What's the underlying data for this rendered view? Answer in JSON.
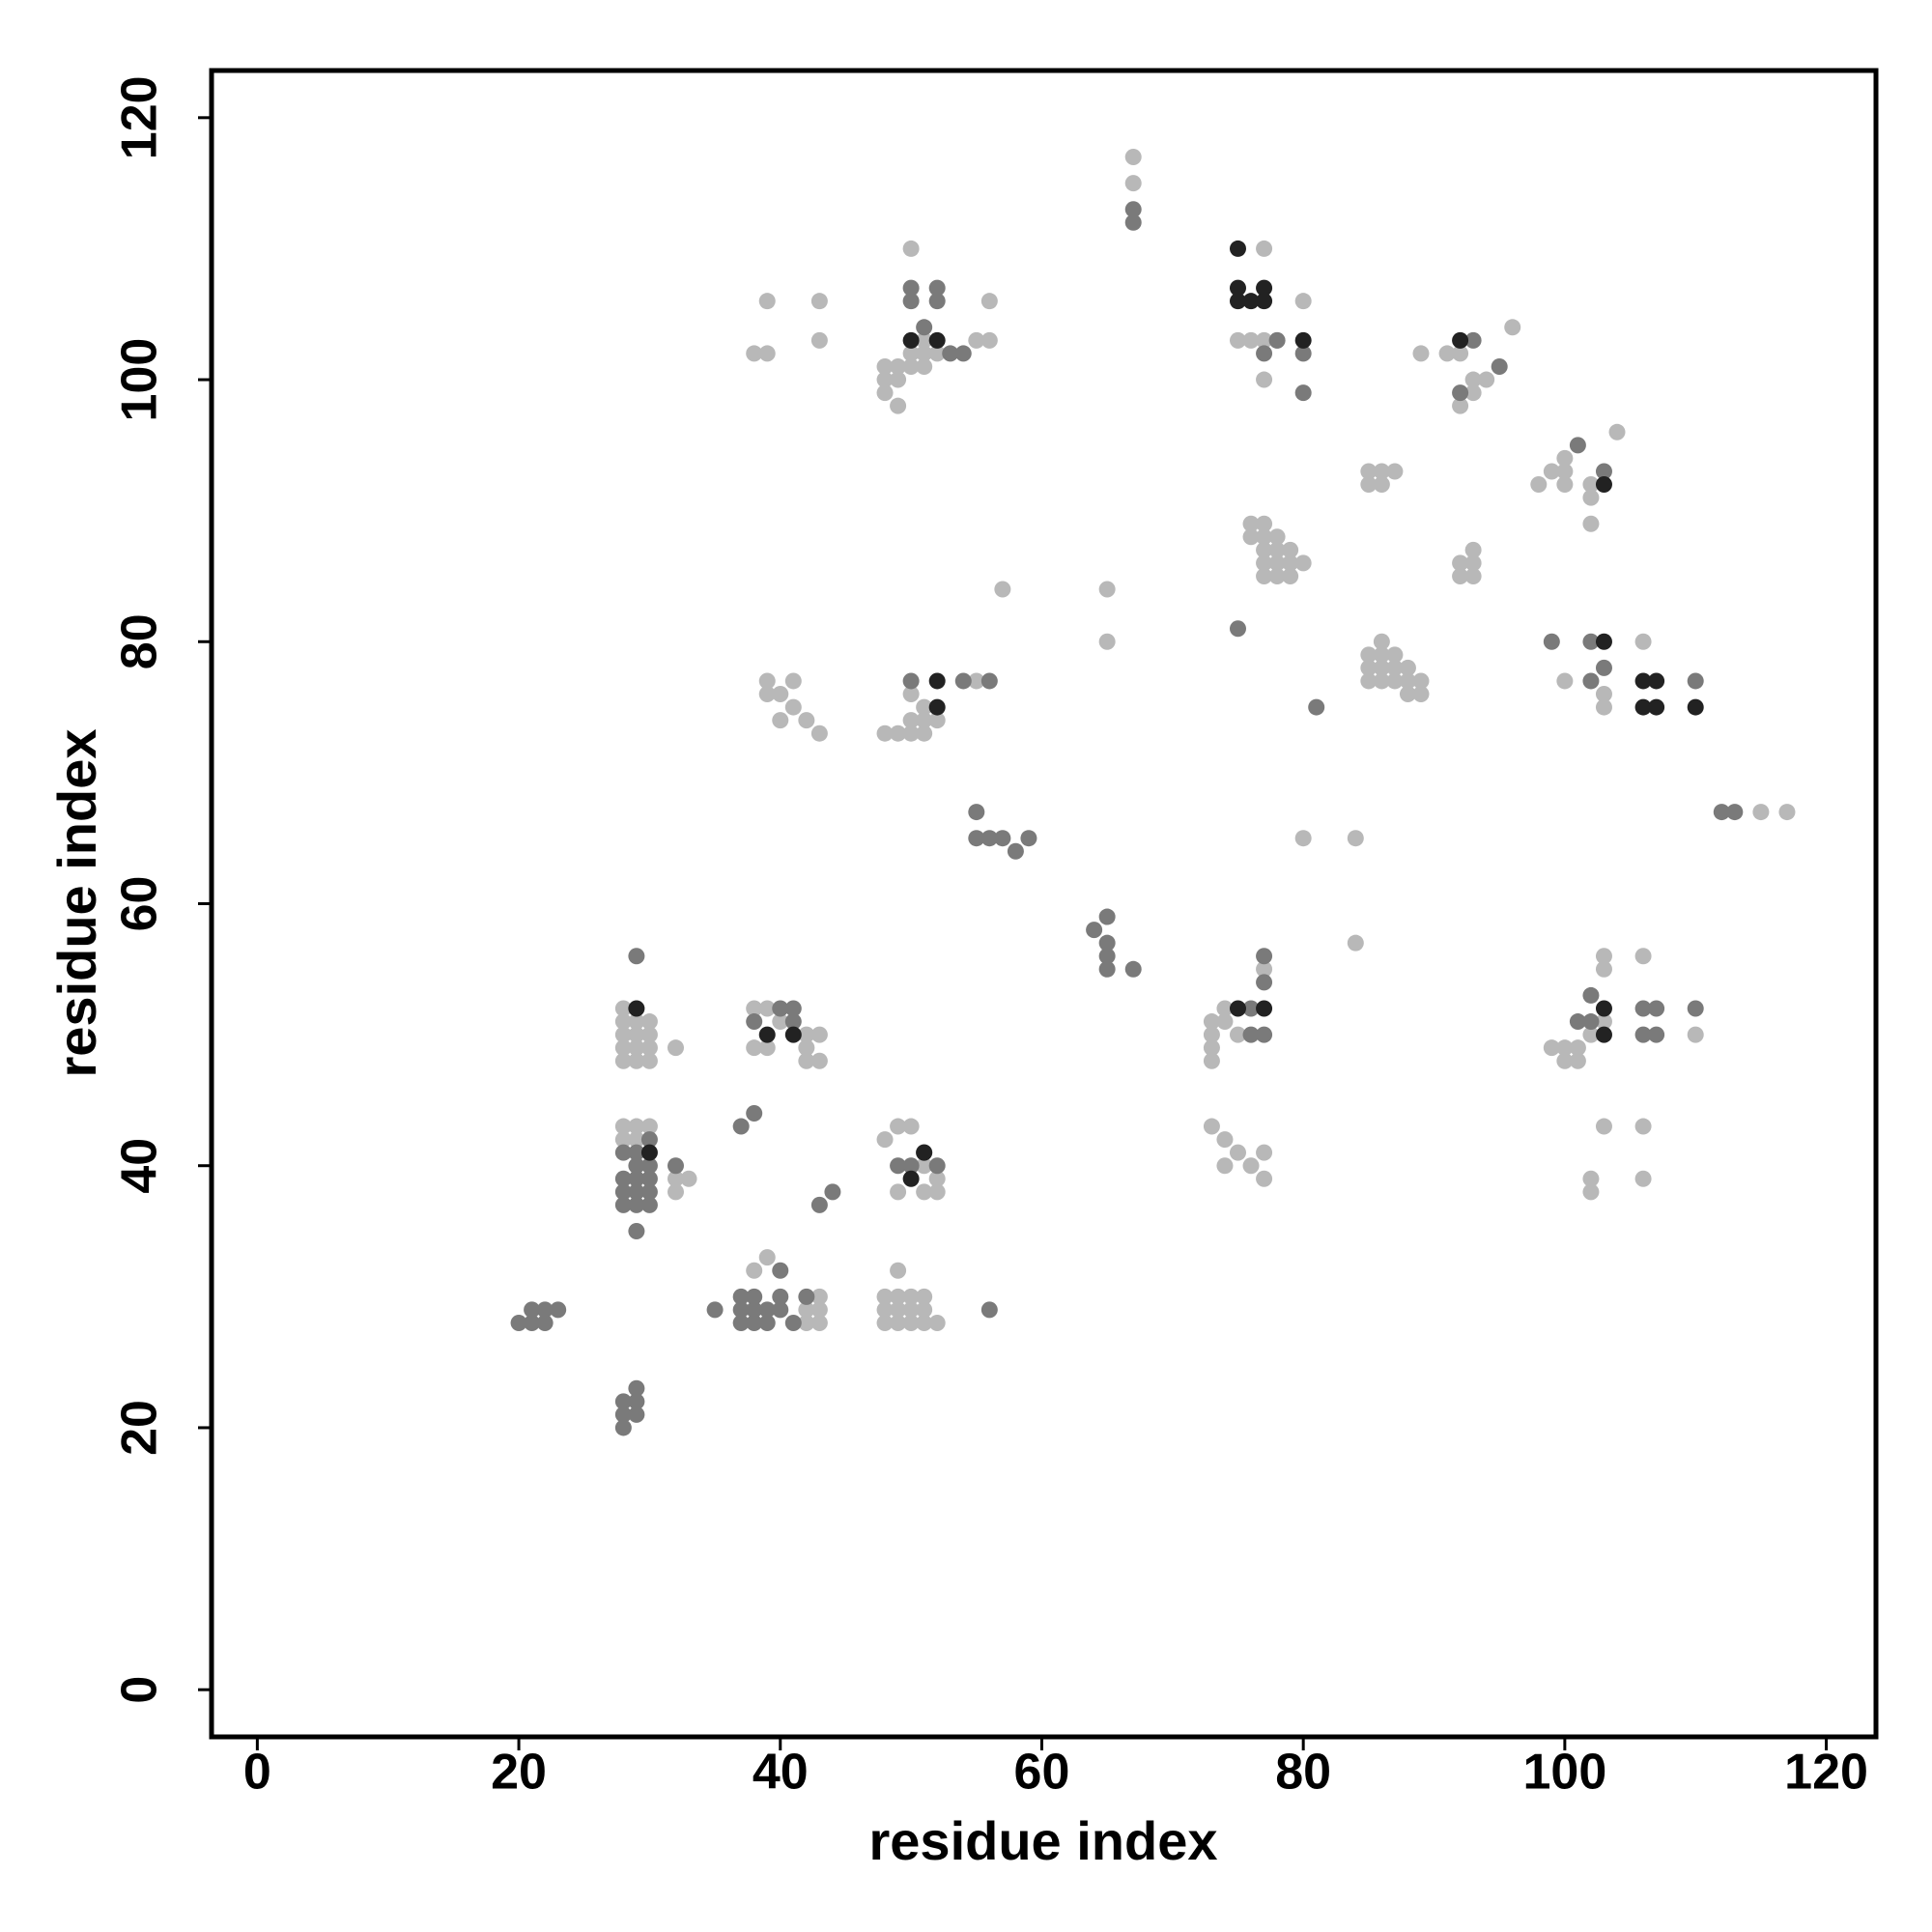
{
  "chart_data": {
    "type": "scatter",
    "xlabel": "residue index",
    "ylabel": "residue index",
    "xlim": [
      -3.5,
      123.8
    ],
    "ylim": [
      -3.6,
      123.6
    ],
    "xticks": [
      0,
      20,
      40,
      60,
      80,
      100,
      120
    ],
    "yticks": [
      0,
      20,
      40,
      60,
      80,
      100,
      120
    ],
    "series": [
      {
        "color": "#b8b8b8",
        "x": [
          28,
          28,
          28,
          28,
          28,
          29,
          29,
          29,
          29,
          30,
          30,
          30,
          30,
          32,
          28,
          28,
          29,
          30,
          29,
          32,
          33,
          32,
          38,
          39,
          38,
          39,
          40,
          42,
          42,
          43,
          42,
          43,
          38,
          39,
          42,
          43,
          42,
          43,
          43,
          48,
          48,
          49,
          49,
          50,
          50,
          51,
          51,
          52,
          48,
          49,
          50,
          51,
          49,
          48,
          49,
          50,
          49,
          51,
          52,
          52,
          51,
          38,
          39,
          39,
          43,
          43,
          48,
          48,
          48,
          49,
          49,
          49,
          50,
          50,
          51,
          51,
          51,
          52,
          50,
          55,
          56,
          56,
          39,
          39,
          40,
          41,
          41,
          40,
          42,
          43,
          48,
          49,
          50,
          51,
          50,
          51,
          52,
          50,
          51,
          55,
          57,
          67,
          67,
          65,
          65,
          75,
          76,
          77,
          78,
          77,
          80,
          77,
          76,
          77,
          76,
          77,
          78,
          77,
          78,
          79,
          77,
          78,
          79,
          80,
          77,
          78,
          79,
          85,
          86,
          87,
          85,
          86,
          85,
          86,
          87,
          85,
          86,
          87,
          88,
          85,
          86,
          87,
          88,
          89,
          88,
          89,
          86,
          89,
          91,
          92,
          93,
          94,
          92,
          93,
          96,
          92,
          93,
          93,
          92,
          93,
          98,
          99,
          100,
          100,
          100,
          102,
          102,
          102,
          104,
          100,
          103,
          103,
          106,
          80,
          84,
          84,
          115,
          117,
          73,
          74,
          73,
          73,
          73,
          74,
          75,
          77,
          73,
          74,
          74,
          75,
          76,
          77,
          77,
          99,
          100,
          101,
          100,
          101,
          102,
          103,
          103,
          103,
          103,
          102,
          102,
          106,
          106,
          106,
          110
        ],
        "values": [
          52,
          51,
          50,
          49,
          48,
          51,
          50,
          49,
          48,
          51,
          50,
          49,
          48,
          49,
          43,
          42,
          43,
          43,
          42,
          39,
          39,
          38,
          52,
          52,
          49,
          49,
          51,
          50,
          49,
          48,
          48,
          50,
          32,
          33,
          28,
          28,
          29,
          29,
          30,
          29,
          28,
          29,
          28,
          29,
          28,
          29,
          28,
          28,
          30,
          30,
          30,
          30,
          32,
          42,
          43,
          43,
          38,
          38,
          38,
          39,
          40,
          102,
          102,
          106,
          106,
          103,
          101,
          100,
          99,
          101,
          100,
          98,
          102,
          101,
          102,
          101,
          103,
          102,
          110,
          103,
          103,
          106,
          77,
          76,
          76,
          77,
          75,
          74,
          74,
          73,
          73,
          73,
          73,
          73,
          74,
          74,
          74,
          76,
          75,
          77,
          84,
          117,
          115,
          84,
          80,
          103,
          103,
          103,
          103,
          100,
          106,
          110,
          89,
          89,
          88,
          88,
          88,
          87,
          87,
          87,
          86,
          86,
          86,
          86,
          85,
          85,
          85,
          93,
          93,
          93,
          92,
          92,
          79,
          79,
          79,
          78,
          78,
          78,
          78,
          77,
          77,
          77,
          77,
          77,
          76,
          76,
          80,
          102,
          102,
          102,
          100,
          100,
          98,
          99,
          104,
          86,
          86,
          87,
          85,
          85,
          92,
          93,
          93,
          94,
          92,
          92,
          91,
          89,
          96,
          77,
          76,
          75,
          80,
          65,
          65,
          57,
          67,
          67,
          51,
          52,
          50,
          49,
          48,
          51,
          50,
          55,
          43,
          42,
          40,
          41,
          40,
          39,
          41,
          49,
          48,
          48,
          49,
          49,
          50,
          51,
          56,
          55,
          43,
          39,
          38,
          56,
          43,
          39,
          50
        ]
      },
      {
        "color": "#7a7a7a",
        "x": [
          20,
          21,
          22,
          21,
          22,
          23,
          28,
          28,
          28,
          29,
          29,
          29,
          29,
          28,
          29,
          30,
          28,
          29,
          30,
          28,
          29,
          30,
          28,
          29,
          30,
          29,
          30,
          29,
          32,
          37,
          38,
          35,
          37,
          37,
          38,
          38,
          39,
          39,
          40,
          41,
          40,
          37,
          38,
          40,
          42,
          44,
          43,
          56,
          38,
          41,
          41,
          40,
          49,
          50,
          51,
          52,
          50,
          50,
          52,
          52,
          51,
          53,
          54,
          50,
          54,
          56,
          55,
          55,
          56,
          57,
          58,
          59,
          67,
          67,
          64,
          65,
          65,
          65,
          65,
          67,
          75,
          77,
          78,
          80,
          80,
          81,
          77,
          77,
          77,
          76,
          76,
          92,
          93,
          95,
          99,
          101,
          102,
          102,
          103,
          103,
          102,
          101,
          102,
          106,
          107,
          106,
          107,
          110,
          110,
          112,
          113
        ],
        "values": [
          28,
          28,
          28,
          29,
          29,
          29,
          22,
          21,
          20,
          23,
          22,
          21,
          56,
          41,
          41,
          42,
          39,
          39,
          39,
          38,
          38,
          38,
          37,
          37,
          37,
          40,
          40,
          35,
          40,
          43,
          44,
          29,
          29,
          28,
          29,
          28,
          29,
          28,
          29,
          28,
          30,
          30,
          30,
          32,
          30,
          38,
          37,
          29,
          51,
          51,
          52,
          52,
          40,
          40,
          41,
          40,
          107,
          106,
          107,
          106,
          104,
          102,
          102,
          77,
          77,
          77,
          67,
          65,
          65,
          65,
          64,
          65,
          113,
          112,
          58,
          59,
          57,
          56,
          55,
          55,
          81,
          102,
          103,
          102,
          99,
          75,
          54,
          56,
          50,
          50,
          52,
          99,
          103,
          101,
          80,
          95,
          80,
          77,
          78,
          93,
          53,
          51,
          51,
          50,
          50,
          52,
          52,
          52,
          77,
          67,
          67
        ]
      },
      {
        "color": "#222222",
        "x": [
          29,
          30,
          39,
          41,
          51,
          50,
          50,
          52,
          52,
          52,
          75,
          75,
          75,
          76,
          77,
          77,
          80,
          92,
          103,
          103,
          106,
          107,
          106,
          107,
          110,
          75,
          77,
          103,
          103
        ],
        "values": [
          52,
          41,
          50,
          50,
          41,
          39,
          103,
          103,
          77,
          75,
          110,
          107,
          106,
          106,
          107,
          106,
          103,
          103,
          92,
          80,
          77,
          77,
          75,
          75,
          75,
          52,
          52,
          52,
          50
        ]
      }
    ]
  }
}
